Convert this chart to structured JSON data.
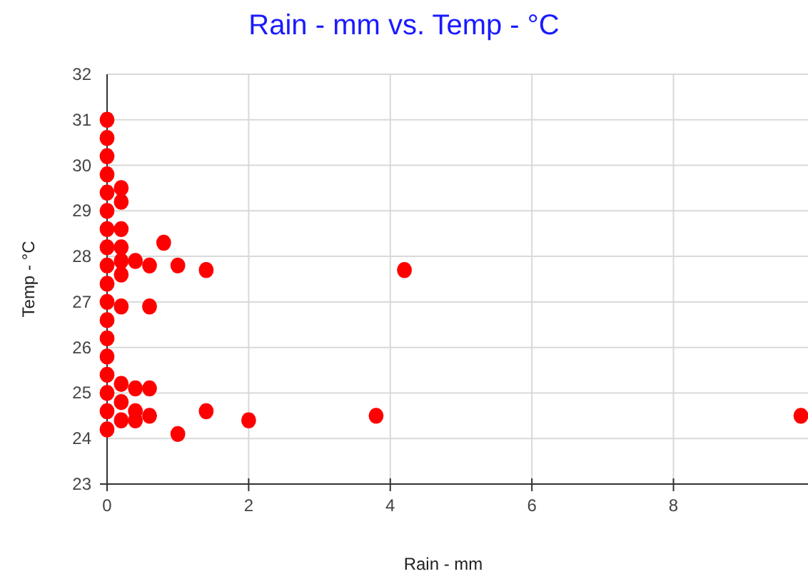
{
  "chart_data": {
    "type": "scatter",
    "title": "Rain - mm vs. Temp - °C",
    "xlabel": "Rain - mm",
    "ylabel": "Temp - °C",
    "xlim": [
      0,
      9.9
    ],
    "xticks": [
      0,
      2,
      4,
      6,
      8
    ],
    "ylim": [
      23,
      32
    ],
    "yticks": [
      23,
      24,
      25,
      26,
      27,
      28,
      29,
      30,
      31,
      32
    ],
    "grid": true,
    "marker": "circle",
    "series": [
      {
        "color": "#ff0000",
        "x": [
          0,
          0,
          0,
          0,
          0,
          0,
          0,
          0,
          0,
          0,
          0,
          0,
          0,
          0,
          0,
          0,
          0,
          0,
          0.2,
          0.2,
          0.2,
          0.2,
          0.2,
          0.2,
          0.2,
          0.2,
          0.2,
          0.2,
          0.4,
          0.4,
          0.4,
          0.4,
          0.6,
          0.6,
          0.6,
          0.6,
          0.8,
          1.0,
          1.0,
          1.4,
          1.4,
          2.0,
          3.8,
          4.2,
          9.8
        ],
        "values": [
          24.2,
          24.6,
          25.0,
          25.4,
          25.8,
          26.2,
          26.6,
          27.0,
          27.4,
          27.8,
          28.2,
          28.6,
          29.0,
          29.4,
          29.8,
          30.2,
          30.6,
          31.0,
          29.5,
          29.2,
          28.6,
          28.2,
          27.9,
          27.6,
          26.9,
          25.2,
          24.8,
          24.4,
          27.9,
          25.1,
          24.6,
          24.4,
          27.8,
          26.9,
          25.1,
          24.5,
          28.3,
          27.8,
          24.1,
          27.7,
          24.6,
          24.4,
          24.5,
          27.7,
          24.5
        ]
      }
    ]
  }
}
